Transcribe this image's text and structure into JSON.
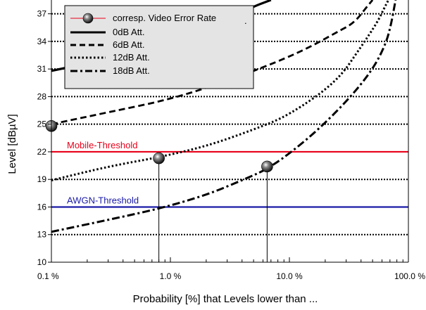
{
  "chart_data": {
    "type": "line",
    "xscale": "log",
    "xlim": [
      0.1,
      100
    ],
    "ylim": [
      10,
      38.5
    ],
    "xlabel": "Probability [%] that Levels lower than ...",
    "ylabel": "Level [dBµV]",
    "x_ticks": [
      {
        "value": 0.1,
        "label": "0.1 %"
      },
      {
        "value": 1,
        "label": "1.0 %"
      },
      {
        "value": 10,
        "label": "10.0 %"
      },
      {
        "value": 100,
        "label": "100.0 %"
      }
    ],
    "y_ticks": [
      10,
      13,
      16,
      19,
      22,
      25,
      28,
      31,
      34,
      37
    ],
    "grid": {
      "horizontal": "dotted",
      "vertical": "none"
    },
    "legend_position": "top-left",
    "series": [
      {
        "name": "0dB Att.",
        "style": "solid",
        "points": [
          [
            0.1,
            30.8
          ],
          [
            0.2,
            31.6
          ],
          [
            0.4,
            32.4
          ],
          [
            0.8,
            33.3
          ],
          [
            1.5,
            34.6
          ],
          [
            3,
            36.4
          ],
          [
            5,
            37.8
          ],
          [
            7,
            38.5
          ]
        ]
      },
      {
        "name": "6dB Att.",
        "style": "dashed",
        "points": [
          [
            0.1,
            25.0
          ],
          [
            0.3,
            26.3
          ],
          [
            1,
            27.7
          ],
          [
            3,
            29.7
          ],
          [
            8,
            31.8
          ],
          [
            15,
            33.4
          ],
          [
            25,
            35.0
          ],
          [
            35,
            36.0
          ],
          [
            45,
            37.8
          ],
          [
            50,
            38.5
          ]
        ]
      },
      {
        "name": "12dB Att.",
        "style": "dotted",
        "points": [
          [
            0.1,
            18.9
          ],
          [
            0.3,
            20.4
          ],
          [
            0.8,
            21.4
          ],
          [
            2,
            22.6
          ],
          [
            5,
            24.4
          ],
          [
            10,
            26.0
          ],
          [
            25,
            29.6
          ],
          [
            40,
            33.4
          ],
          [
            55,
            36.1
          ],
          [
            62,
            37.5
          ],
          [
            68,
            38.5
          ]
        ]
      },
      {
        "name": "18dB Att.",
        "style": "dashdot",
        "points": [
          [
            0.1,
            13.3
          ],
          [
            0.3,
            14.6
          ],
          [
            0.8,
            15.8
          ],
          [
            2,
            17.3
          ],
          [
            4,
            18.9
          ],
          [
            7,
            20.3
          ],
          [
            15,
            23.6
          ],
          [
            30,
            27.4
          ],
          [
            50,
            30.9
          ],
          [
            65,
            33.8
          ],
          [
            72,
            36.0
          ],
          [
            78,
            38.5
          ]
        ]
      }
    ],
    "markers": {
      "name": "corresp. Video Error Rate",
      "points": [
        [
          0.1,
          24.8
        ],
        [
          0.8,
          21.3
        ],
        [
          6.5,
          20.4
        ]
      ],
      "drop_lines": true
    },
    "thresholds": [
      {
        "name": "Mobile-Threshold",
        "value": 22,
        "color": "#e8001a"
      },
      {
        "name": "AWGN-Threshold",
        "value": 16,
        "color": "#1a1aa8"
      }
    ],
    "legend_dot": "."
  }
}
